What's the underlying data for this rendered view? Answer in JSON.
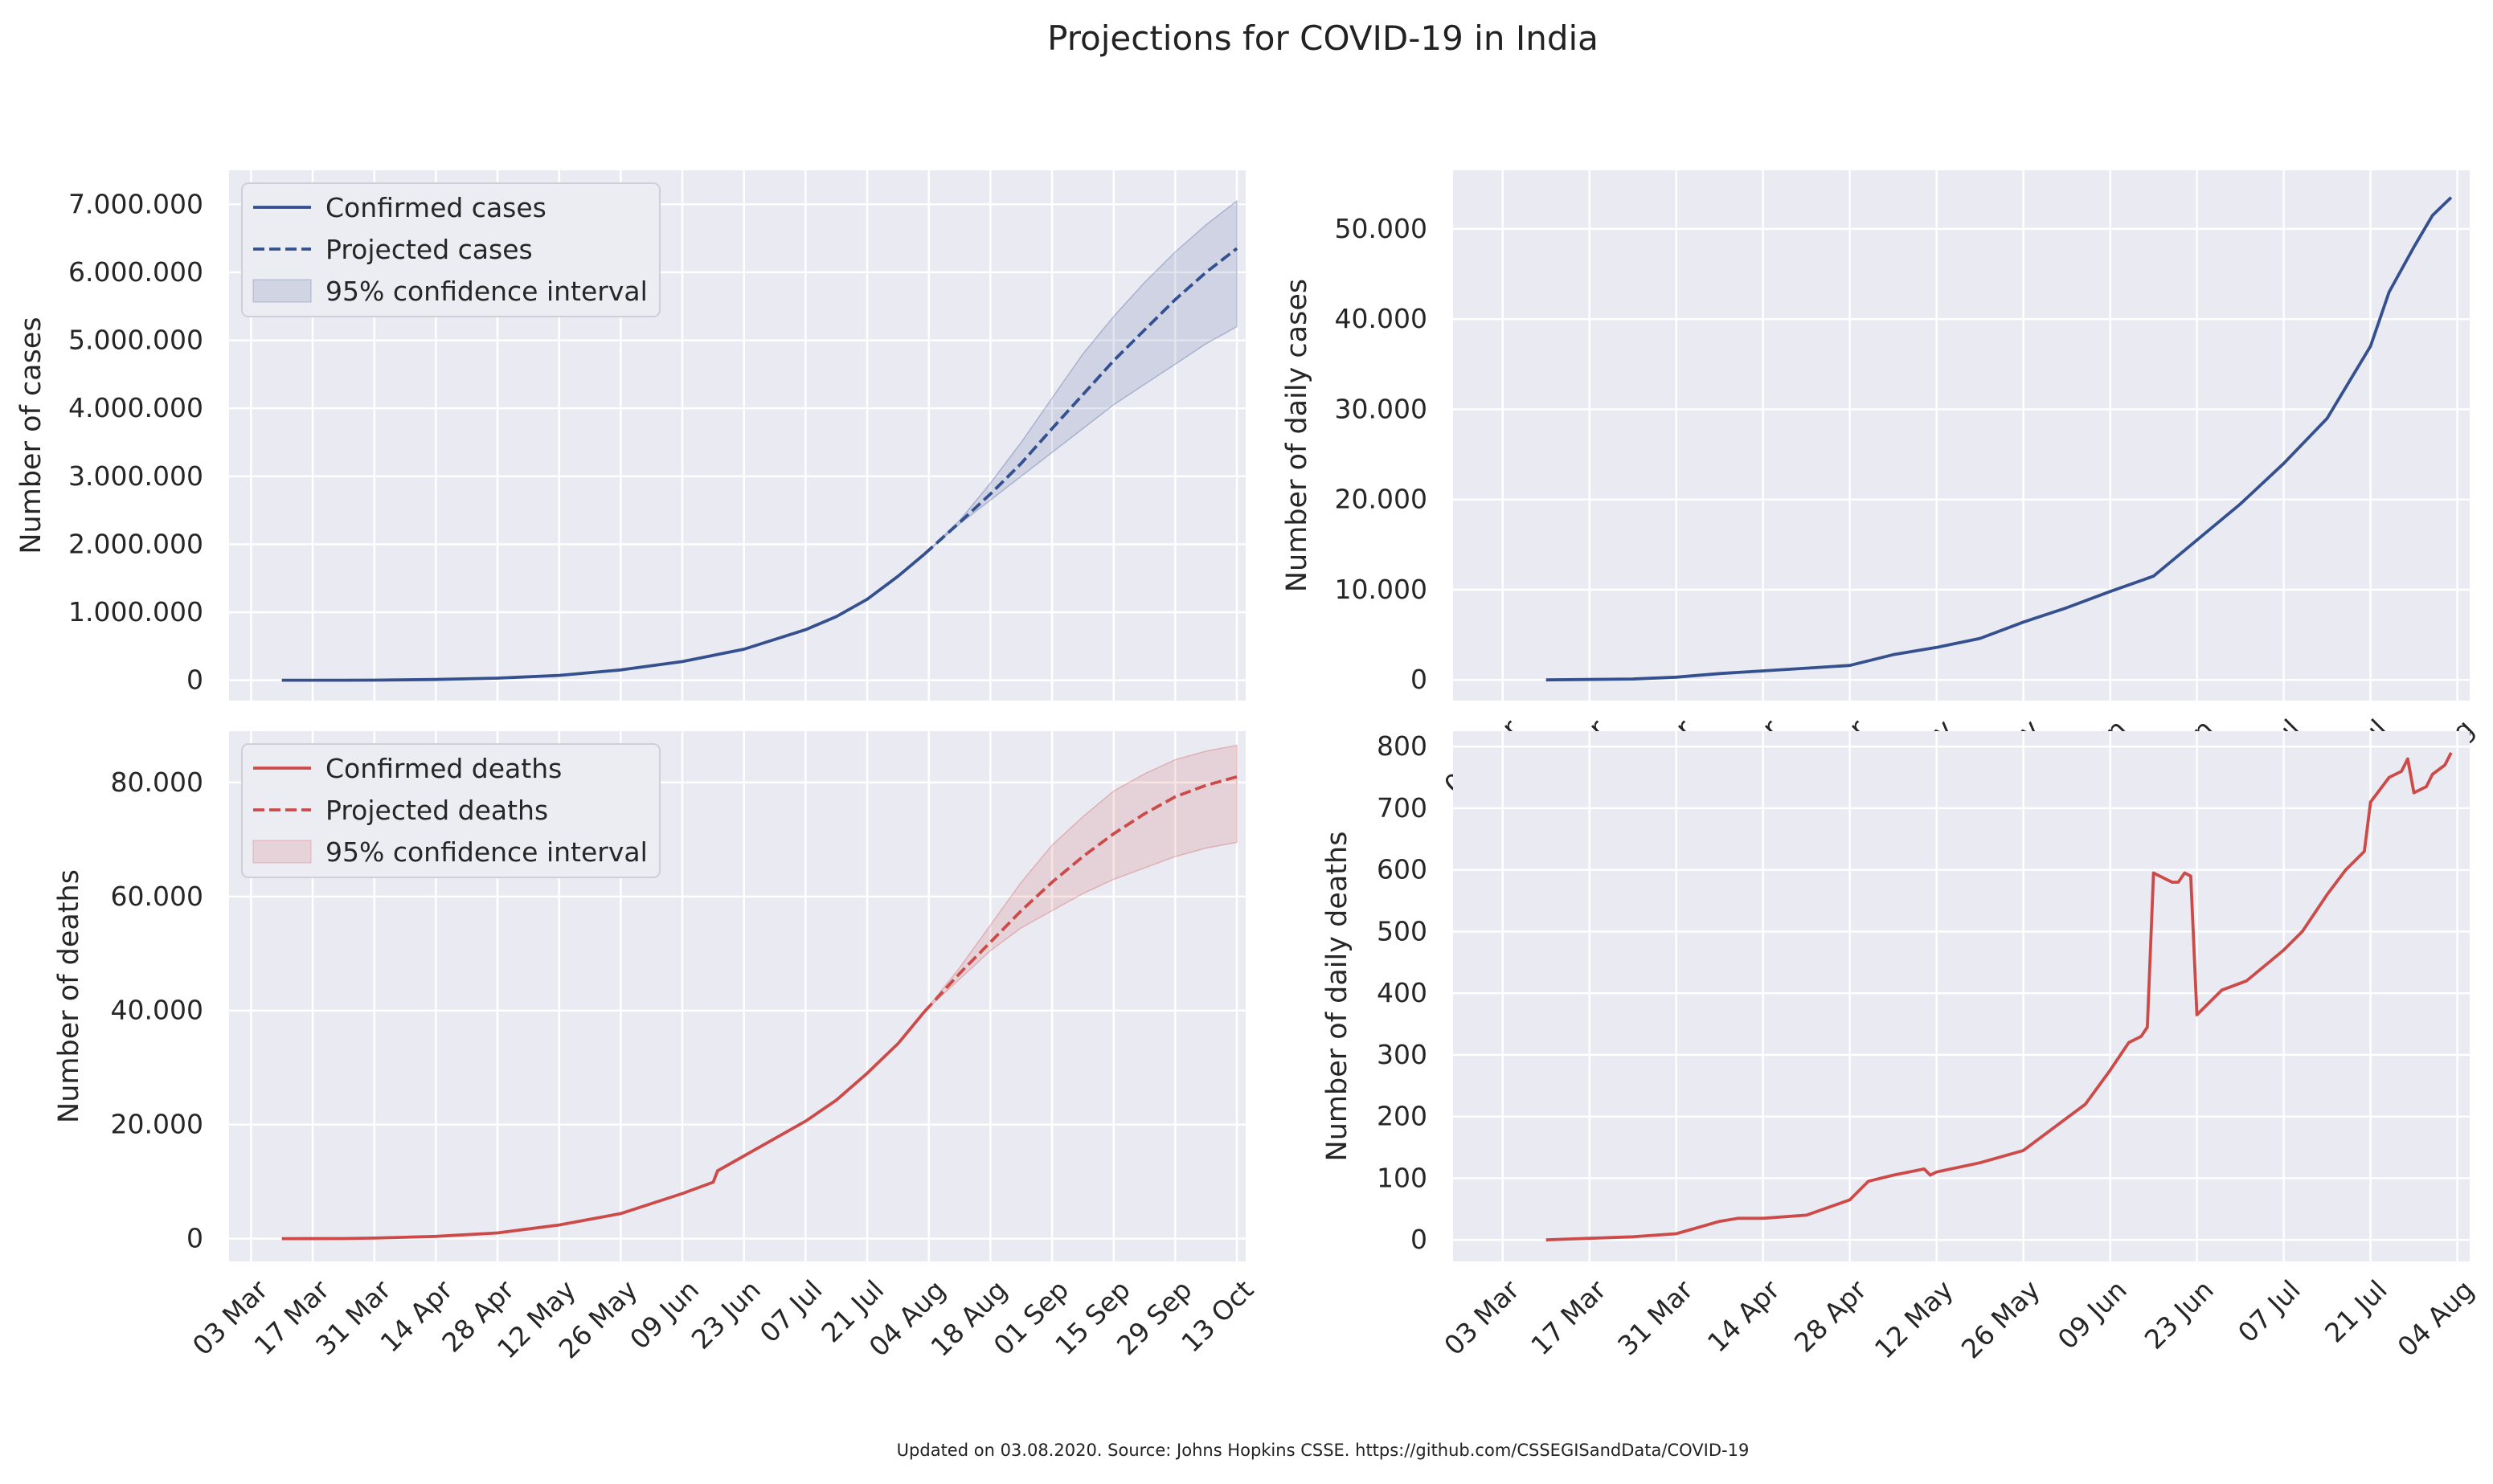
{
  "figure": {
    "title": "Projections for COVID-19 in India",
    "footer": "Updated on 03.08.2020. Source: Johns Hopkins CSSE. https://github.com/CSSEGISandData/COVID-19",
    "colors": {
      "cases": "#34508e",
      "deaths": "#cc4a48",
      "panel_bg": "#eaeaf2",
      "grid": "#ffffff"
    }
  },
  "chart_data": [
    {
      "id": "cum_cases",
      "type": "line",
      "title": "",
      "ylabel": "Number of cases",
      "xlabel": "",
      "x_type": "date",
      "xlim": [
        "2020-02-27",
        "2020-10-15"
      ],
      "ylim": [
        -300000,
        7500000
      ],
      "yticks": [
        0,
        1000000,
        2000000,
        3000000,
        4000000,
        5000000,
        6000000,
        7000000
      ],
      "ytick_labels": [
        "0",
        "1.000.000",
        "2.000.000",
        "3.000.000",
        "4.000.000",
        "5.000.000",
        "6.000.000",
        "7.000.000"
      ],
      "xticks": [
        "2020-03-03",
        "2020-03-17",
        "2020-03-31",
        "2020-04-14",
        "2020-04-28",
        "2020-05-12",
        "2020-05-26",
        "2020-06-09",
        "2020-06-23",
        "2020-07-07",
        "2020-07-21",
        "2020-08-04",
        "2020-08-18",
        "2020-09-01",
        "2020-09-15",
        "2020-09-29",
        "2020-10-13"
      ],
      "xtick_labels": [
        "03 Mar",
        "17 Mar",
        "31 Mar",
        "14 Apr",
        "28 Apr",
        "12 May",
        "26 May",
        "09 Jun",
        "23 Jun",
        "07 Jul",
        "21 Jul",
        "04 Aug",
        "18 Aug",
        "01 Sep",
        "15 Sep",
        "29 Sep",
        "13 Oct"
      ],
      "show_xtick_labels": false,
      "legend": {
        "position": "upper-left",
        "entries": [
          "Confirmed cases",
          "Projected cases",
          "95% confidence interval"
        ]
      },
      "series": [
        {
          "name": "Confirmed cases",
          "style": "solid",
          "x": [
            "2020-03-10",
            "2020-03-24",
            "2020-03-31",
            "2020-04-14",
            "2020-04-28",
            "2020-05-12",
            "2020-05-26",
            "2020-06-09",
            "2020-06-23",
            "2020-07-07",
            "2020-07-14",
            "2020-07-21",
            "2020-07-28",
            "2020-08-03"
          ],
          "y": [
            0,
            500,
            1500,
            11000,
            31000,
            71000,
            151000,
            274000,
            456000,
            743000,
            936000,
            1190000,
            1530000,
            1855000
          ]
        },
        {
          "name": "Projected cases",
          "style": "dashed",
          "x": [
            "2020-08-03",
            "2020-08-11",
            "2020-08-18",
            "2020-08-25",
            "2020-09-01",
            "2020-09-08",
            "2020-09-15",
            "2020-09-22",
            "2020-09-29",
            "2020-10-06",
            "2020-10-13"
          ],
          "y": [
            1855000,
            2320000,
            2740000,
            3190000,
            3700000,
            4200000,
            4700000,
            5150000,
            5600000,
            6000000,
            6350000
          ]
        }
      ],
      "band": {
        "name": "95% confidence interval",
        "x": [
          "2020-08-03",
          "2020-08-11",
          "2020-08-18",
          "2020-08-25",
          "2020-09-01",
          "2020-09-08",
          "2020-09-15",
          "2020-09-22",
          "2020-09-29",
          "2020-10-06",
          "2020-10-13"
        ],
        "lower": [
          1855000,
          2300000,
          2650000,
          3000000,
          3350000,
          3700000,
          4050000,
          4350000,
          4650000,
          4950000,
          5200000
        ],
        "upper": [
          1855000,
          2350000,
          2900000,
          3500000,
          4150000,
          4800000,
          5350000,
          5850000,
          6300000,
          6700000,
          7050000
        ]
      }
    },
    {
      "id": "daily_cases",
      "type": "line",
      "title": "",
      "ylabel": "Number of daily cases",
      "xlabel": "",
      "x_type": "date",
      "xlim": [
        "2020-02-24",
        "2020-08-06"
      ],
      "ylim": [
        -2300,
        56500
      ],
      "yticks": [
        0,
        10000,
        20000,
        30000,
        40000,
        50000
      ],
      "ytick_labels": [
        "0",
        "10.000",
        "20.000",
        "30.000",
        "40.000",
        "50.000"
      ],
      "xticks": [
        "2020-03-03",
        "2020-03-17",
        "2020-03-31",
        "2020-04-14",
        "2020-04-28",
        "2020-05-12",
        "2020-05-26",
        "2020-06-09",
        "2020-06-23",
        "2020-07-07",
        "2020-07-21",
        "2020-08-04"
      ],
      "xtick_labels": [
        "03 Mar",
        "17 Mar",
        "31 Mar",
        "14 Apr",
        "28 Apr",
        "12 May",
        "26 May",
        "09 Jun",
        "23 Jun",
        "07 Jul",
        "21 Jul",
        "04 Aug"
      ],
      "show_xtick_labels": true,
      "series": [
        {
          "name": "",
          "style": "solid",
          "x": [
            "2020-03-10",
            "2020-03-24",
            "2020-03-31",
            "2020-04-07",
            "2020-04-14",
            "2020-04-21",
            "2020-04-28",
            "2020-05-05",
            "2020-05-12",
            "2020-05-19",
            "2020-05-26",
            "2020-06-02",
            "2020-06-09",
            "2020-06-16",
            "2020-06-23",
            "2020-06-30",
            "2020-07-07",
            "2020-07-14",
            "2020-07-21",
            "2020-07-24",
            "2020-07-28",
            "2020-07-31",
            "2020-08-03"
          ],
          "y": [
            0,
            100,
            300,
            700,
            1000,
            1300,
            1600,
            2800,
            3600,
            4600,
            6400,
            8000,
            9800,
            11500,
            15500,
            19500,
            24000,
            29000,
            37000,
            43000,
            48000,
            51500,
            53500
          ]
        }
      ]
    },
    {
      "id": "cum_deaths",
      "type": "line",
      "title": "",
      "ylabel": "Number of deaths",
      "xlabel": "",
      "x_type": "date",
      "xlim": [
        "2020-02-27",
        "2020-10-15"
      ],
      "ylim": [
        -4000,
        89000
      ],
      "yticks": [
        0,
        20000,
        40000,
        60000,
        80000
      ],
      "ytick_labels": [
        "0",
        "20.000",
        "40.000",
        "60.000",
        "80.000"
      ],
      "xticks": [
        "2020-03-03",
        "2020-03-17",
        "2020-03-31",
        "2020-04-14",
        "2020-04-28",
        "2020-05-12",
        "2020-05-26",
        "2020-06-09",
        "2020-06-23",
        "2020-07-07",
        "2020-07-21",
        "2020-08-04",
        "2020-08-18",
        "2020-09-01",
        "2020-09-15",
        "2020-09-29",
        "2020-10-13"
      ],
      "xtick_labels": [
        "03 Mar",
        "17 Mar",
        "31 Mar",
        "14 Apr",
        "28 Apr",
        "12 May",
        "26 May",
        "09 Jun",
        "23 Jun",
        "07 Jul",
        "21 Jul",
        "04 Aug",
        "18 Aug",
        "01 Sep",
        "15 Sep",
        "29 Sep",
        "13 Oct"
      ],
      "show_xtick_labels": true,
      "legend": {
        "position": "upper-left",
        "entries": [
          "Confirmed deaths",
          "Projected deaths",
          "95% confidence interval"
        ]
      },
      "series": [
        {
          "name": "Confirmed deaths",
          "style": "solid",
          "x": [
            "2020-03-10",
            "2020-03-24",
            "2020-03-31",
            "2020-04-14",
            "2020-04-28",
            "2020-05-12",
            "2020-05-26",
            "2020-06-09",
            "2020-06-16",
            "2020-06-17",
            "2020-06-23",
            "2020-07-07",
            "2020-07-14",
            "2020-07-21",
            "2020-07-28",
            "2020-08-03"
          ],
          "y": [
            0,
            10,
            100,
            400,
            1000,
            2400,
            4400,
            7900,
            9900,
            11900,
            14500,
            20600,
            24300,
            29000,
            34200,
            39800
          ]
        },
        {
          "name": "Projected deaths",
          "style": "dashed",
          "x": [
            "2020-08-03",
            "2020-08-11",
            "2020-08-18",
            "2020-08-25",
            "2020-09-01",
            "2020-09-08",
            "2020-09-15",
            "2020-09-22",
            "2020-09-29",
            "2020-10-06",
            "2020-10-13"
          ],
          "y": [
            39800,
            46500,
            52000,
            57500,
            62500,
            67000,
            71000,
            74500,
            77500,
            79500,
            81000
          ]
        }
      ],
      "band": {
        "name": "95% confidence interval",
        "x": [
          "2020-08-03",
          "2020-08-11",
          "2020-08-18",
          "2020-08-25",
          "2020-09-01",
          "2020-09-08",
          "2020-09-15",
          "2020-09-22",
          "2020-09-29",
          "2020-10-06",
          "2020-10-13"
        ],
        "lower": [
          39800,
          45500,
          50500,
          54500,
          57500,
          60500,
          63000,
          65000,
          67000,
          68500,
          69500
        ],
        "upper": [
          39800,
          47500,
          55000,
          62500,
          69000,
          74000,
          78500,
          81500,
          84000,
          85500,
          86500
        ]
      }
    },
    {
      "id": "daily_deaths",
      "type": "line",
      "title": "",
      "ylabel": "Number of daily deaths",
      "xlabel": "",
      "x_type": "date",
      "xlim": [
        "2020-02-24",
        "2020-08-06"
      ],
      "ylim": [
        -35,
        825
      ],
      "yticks": [
        0,
        100,
        200,
        300,
        400,
        500,
        600,
        700,
        800
      ],
      "ytick_labels": [
        "0",
        "100",
        "200",
        "300",
        "400",
        "500",
        "600",
        "700",
        "800"
      ],
      "xticks": [
        "2020-03-03",
        "2020-03-17",
        "2020-03-31",
        "2020-04-14",
        "2020-04-28",
        "2020-05-12",
        "2020-05-26",
        "2020-06-09",
        "2020-06-23",
        "2020-07-07",
        "2020-07-21",
        "2020-08-04"
      ],
      "xtick_labels": [
        "03 Mar",
        "17 Mar",
        "31 Mar",
        "14 Apr",
        "28 Apr",
        "12 May",
        "26 May",
        "09 Jun",
        "23 Jun",
        "07 Jul",
        "21 Jul",
        "04 Aug"
      ],
      "show_xtick_labels": true,
      "series": [
        {
          "name": "",
          "style": "solid",
          "x": [
            "2020-03-10",
            "2020-03-24",
            "2020-03-31",
            "2020-04-07",
            "2020-04-10",
            "2020-04-14",
            "2020-04-21",
            "2020-04-28",
            "2020-05-01",
            "2020-05-05",
            "2020-05-10",
            "2020-05-11",
            "2020-05-12",
            "2020-05-19",
            "2020-05-26",
            "2020-06-01",
            "2020-06-05",
            "2020-06-09",
            "2020-06-12",
            "2020-06-14",
            "2020-06-15",
            "2020-06-16",
            "2020-06-17",
            "2020-06-18",
            "2020-06-19",
            "2020-06-20",
            "2020-06-21",
            "2020-06-22",
            "2020-06-23",
            "2020-06-27",
            "2020-07-01",
            "2020-07-07",
            "2020-07-10",
            "2020-07-14",
            "2020-07-17",
            "2020-07-19",
            "2020-07-20",
            "2020-07-21",
            "2020-07-24",
            "2020-07-26",
            "2020-07-27",
            "2020-07-28",
            "2020-07-30",
            "2020-07-31",
            "2020-08-02",
            "2020-08-03"
          ],
          "y": [
            0,
            5,
            10,
            30,
            35,
            35,
            40,
            65,
            95,
            105,
            115,
            105,
            110,
            125,
            145,
            190,
            220,
            275,
            320,
            330,
            345,
            595,
            590,
            585,
            580,
            580,
            595,
            590,
            365,
            405,
            420,
            470,
            500,
            560,
            600,
            620,
            630,
            710,
            750,
            760,
            780,
            725,
            735,
            755,
            770,
            790
          ]
        }
      ]
    }
  ]
}
